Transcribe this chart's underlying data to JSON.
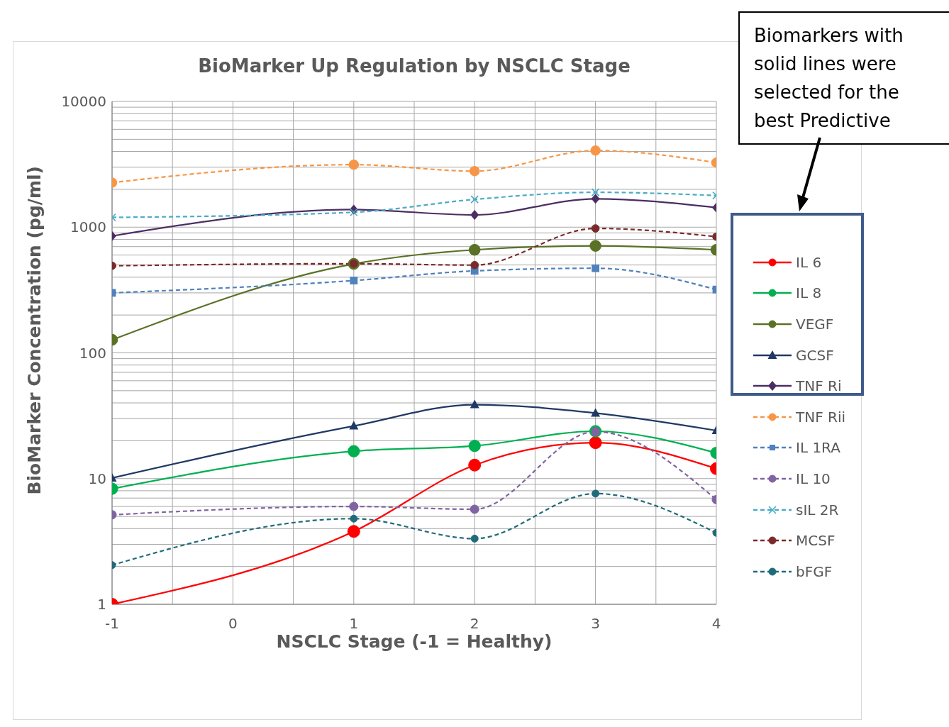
{
  "chart_data": {
    "type": "line",
    "title": "BioMarker  Up Regulation  by  NSCLC Stage",
    "xlabel": "NSCLC Stage (-1 = Healthy)",
    "ylabel": "BioMarker Concentration (pg/ml)",
    "x": [
      -1,
      1,
      2,
      3,
      4
    ],
    "xlim": [
      -1,
      4
    ],
    "xticks": [
      -1,
      0,
      1,
      2,
      3,
      4
    ],
    "ylim": [
      1,
      10000
    ],
    "yticks": [
      1,
      10,
      100,
      1000,
      10000
    ],
    "log": "y",
    "grid": true,
    "legend": "right",
    "annotations": [
      "Biomarkers with solid lines were selected for the best Predictive"
    ],
    "series": [
      {
        "name": "IL 6",
        "color": "#ff0000",
        "line_style": "solid",
        "marker": "circle",
        "values": [
          1,
          3.8,
          12.8,
          19.3,
          12
        ]
      },
      {
        "name": "IL 8",
        "color": "#00b050",
        "line_style": "solid",
        "marker": "circle",
        "values": [
          8.3,
          16.5,
          18.2,
          23.8,
          16
        ]
      },
      {
        "name": "VEGF",
        "color": "#5a7126",
        "line_style": "solid",
        "marker": "circle",
        "values": [
          127,
          510,
          660,
          710,
          660
        ]
      },
      {
        "name": "GCSF",
        "color": "#203864",
        "line_style": "solid",
        "marker": "triangle",
        "values": [
          10.1,
          26.2,
          38.7,
          33.2,
          24.1
        ]
      },
      {
        "name": "TNF Ri",
        "color": "#4b2d63",
        "line_style": "solid",
        "marker": "diamond",
        "values": [
          850,
          1380,
          1250,
          1680,
          1430
        ]
      },
      {
        "name": "TNF Rii",
        "color": "#f79646",
        "line_style": "dashed",
        "marker": "circle",
        "values": [
          2260,
          3140,
          2790,
          4070,
          3260
        ]
      },
      {
        "name": "IL 1RA",
        "color": "#4f81bd",
        "line_style": "dashed",
        "marker": "square",
        "values": [
          300,
          376,
          449,
          471,
          319
        ]
      },
      {
        "name": "IL 10",
        "color": "#8064a2",
        "line_style": "dashed",
        "marker": "circle",
        "values": [
          5.15,
          6,
          5.7,
          23.6,
          6.8
        ]
      },
      {
        "name": "sIL 2R",
        "color": "#4bacc6",
        "line_style": "dashed",
        "marker": "cross",
        "values": [
          1195,
          1313,
          1662,
          1893,
          1784
        ]
      },
      {
        "name": "MCSF",
        "color": "#7b2a2a",
        "line_style": "dashed",
        "marker": "circle",
        "values": [
          493,
          512,
          499,
          977,
          840
        ]
      },
      {
        "name": "bFGF",
        "color": "#1f6b7a",
        "line_style": "dashed",
        "marker": "circle",
        "values": [
          2.05,
          4.8,
          3.33,
          7.6,
          3.7
        ]
      }
    ]
  }
}
